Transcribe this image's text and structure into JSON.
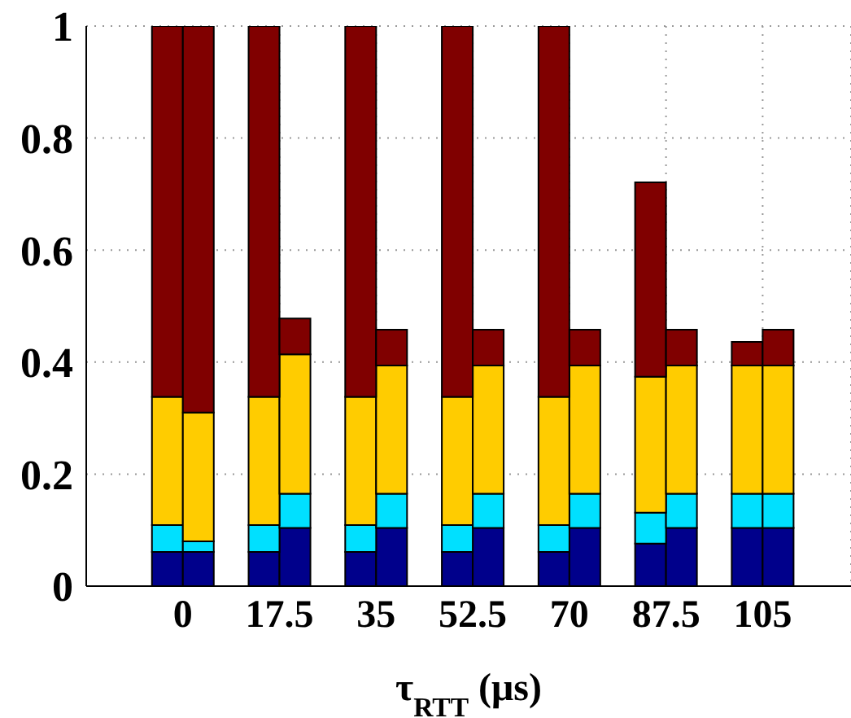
{
  "chart_data": {
    "type": "bar",
    "stacked": true,
    "xlabel": "τ$_{RTT}$ (μs)",
    "x": [
      -2.8,
      2.8,
      14.7,
      20.3,
      32.2,
      37.8,
      49.7,
      55.3,
      67.2,
      72.8,
      84.7,
      90.3,
      102.2,
      107.8
    ],
    "xlim": [
      -17.5,
      121
    ],
    "xticks": [
      0,
      17.5,
      35,
      52.5,
      70,
      87.5,
      105
    ],
    "ylim": [
      0,
      1
    ],
    "yticks": [
      0,
      0.2,
      0.4,
      0.6,
      0.8,
      1
    ],
    "grid": true,
    "series": [
      {
        "color": "#00008b",
        "values": [
          0.061,
          0.061,
          0.061,
          0.104,
          0.061,
          0.104,
          0.061,
          0.104,
          0.061,
          0.104,
          0.076,
          0.104,
          0.104,
          0.104
        ]
      },
      {
        "color": "#00e0ff",
        "values": [
          0.048,
          0.019,
          0.048,
          0.061,
          0.048,
          0.061,
          0.048,
          0.061,
          0.048,
          0.061,
          0.055,
          0.061,
          0.061,
          0.061
        ]
      },
      {
        "color": "#ffcc00",
        "values": [
          0.229,
          0.23,
          0.229,
          0.249,
          0.229,
          0.229,
          0.229,
          0.229,
          0.229,
          0.229,
          0.243,
          0.229,
          0.229,
          0.229
        ]
      },
      {
        "color": "#800000",
        "values": [
          0.662,
          0.69,
          0.662,
          0.064,
          0.662,
          0.064,
          0.662,
          0.064,
          0.662,
          0.064,
          0.347,
          0.064,
          0.042,
          0.064
        ]
      }
    ]
  }
}
